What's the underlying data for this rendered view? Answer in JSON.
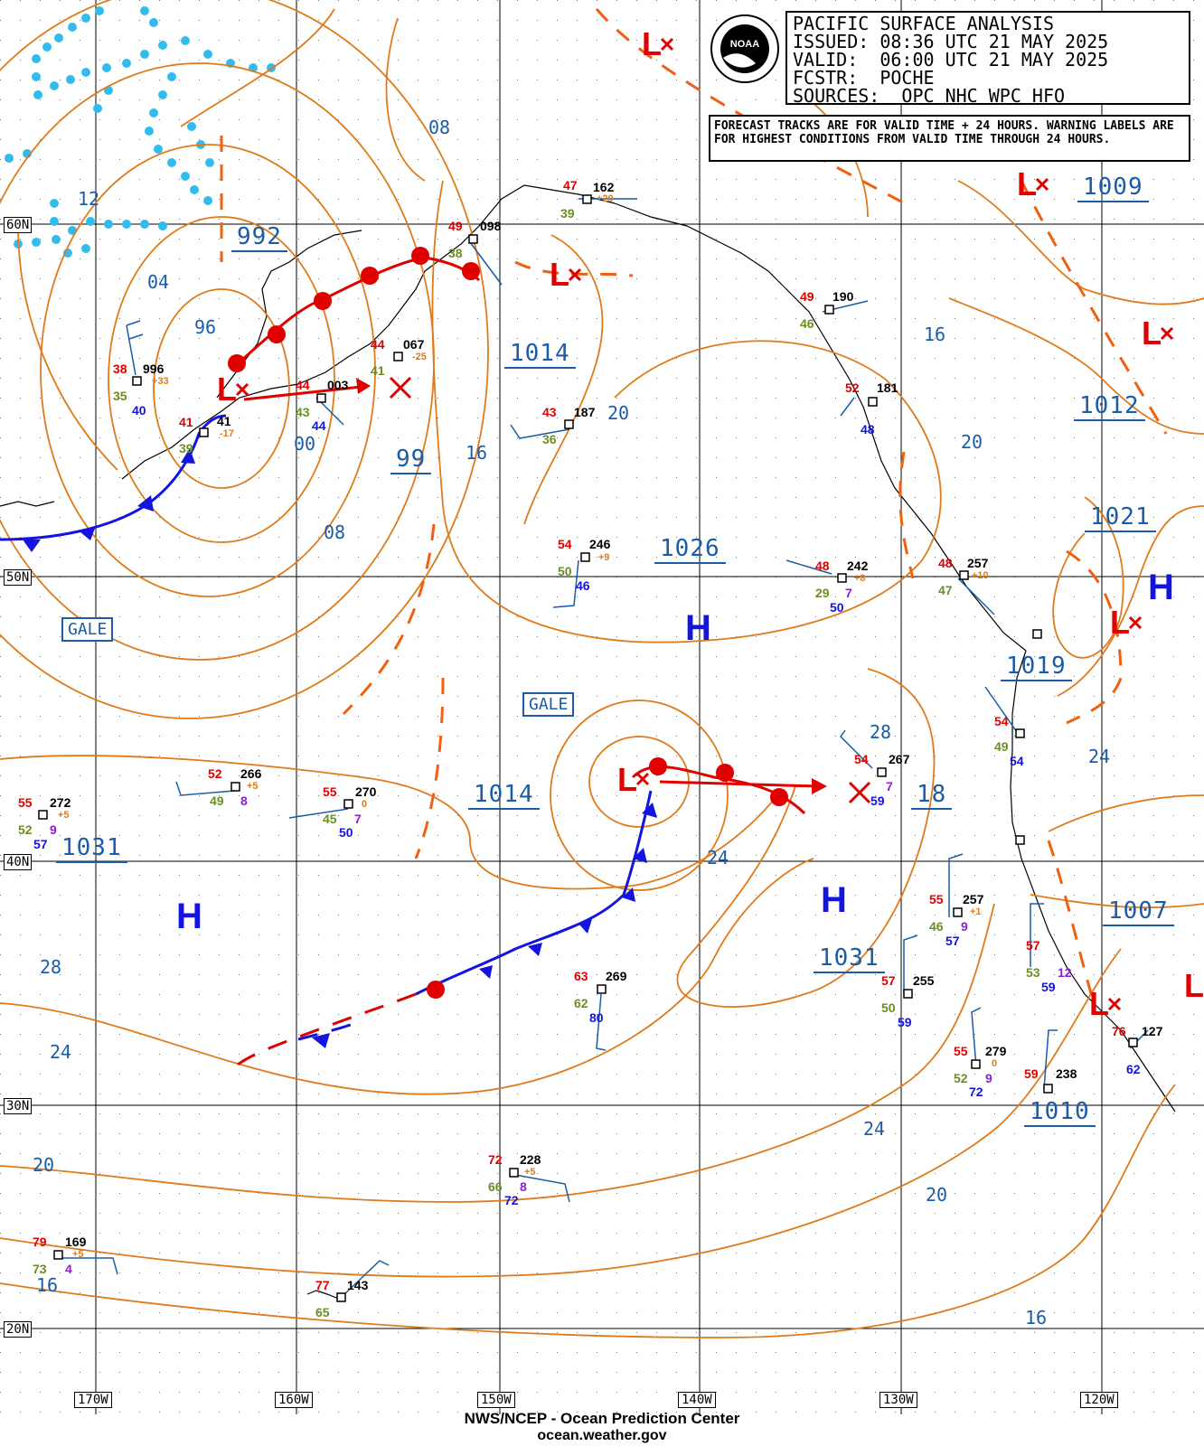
{
  "header": {
    "title": "PACIFIC SURFACE ANALYSIS",
    "issued": "ISSUED: 08:36 UTC 21 MAY 2025",
    "valid": "VALID:  06:00 UTC 21 MAY 2025",
    "forecaster": "FCSTR:  POCHE",
    "sources": "SOURCES:  OPC NHC WPC HFO"
  },
  "note": "FORECAST TRACKS ARE FOR VALID TIME + 24 HOURS. WARNING LABELS ARE FOR HIGHEST CONDITIONS FROM VALID TIME THROUGH 24 HOURS.",
  "logo_text": "NOAA",
  "footer": {
    "line1": "NWS/NCEP - Ocean Prediction Center",
    "line2": "ocean.weather.gov"
  },
  "latitudes": [
    "60N",
    "50N",
    "40N",
    "30N",
    "20N"
  ],
  "longitudes": [
    "170W",
    "160W",
    "150W",
    "140W",
    "130W",
    "120W"
  ],
  "pressure_centers": [
    "992",
    "99",
    "1014",
    "1014",
    "1026",
    "1031",
    "1031",
    "1019",
    "1021",
    "1012",
    "1009",
    "1007",
    "1010",
    "18"
  ],
  "isobar_labels": [
    "12",
    "04",
    "96",
    "00",
    "08",
    "08",
    "16",
    "20",
    "16",
    "20",
    "28",
    "24",
    "24",
    "28",
    "24",
    "20",
    "24",
    "20",
    "16",
    "16"
  ],
  "high_label": "H",
  "low_label": "L",
  "gale_label": "GALE",
  "colors": {
    "isobar": "#e07a1a",
    "label_blue": "#1a5ca8",
    "warm_front": "#e00000",
    "cold_front": "#1414e0",
    "ice_dots": "#33bbee",
    "grid": "#000000"
  },
  "observations": [
    {
      "temp": "38",
      "dew": "35",
      "pres": "996",
      "tend": "+33",
      "vis": "40"
    },
    {
      "temp": "41",
      "dew": "39",
      "pres": "41",
      "tend": "-17"
    },
    {
      "temp": "44",
      "dew": "43",
      "pres": "003",
      "vis": "44"
    },
    {
      "temp": "44",
      "dew": "41",
      "pres": "067",
      "tend": "-25"
    },
    {
      "temp": "49",
      "dew": "38",
      "pres": "098"
    },
    {
      "temp": "47",
      "dew": "39",
      "pres": "162",
      "tend": "+20"
    },
    {
      "temp": "43",
      "dew": "36",
      "pres": "187"
    },
    {
      "temp": "54",
      "dew": "50",
      "pres": "246",
      "tend": "+9",
      "vis": "46"
    },
    {
      "temp": "48",
      "dew": "29",
      "pres": "242",
      "tend": "+8",
      "vis": "50",
      "sst": "7"
    },
    {
      "temp": "48",
      "dew": "47",
      "pres": "257",
      "tend": "+10"
    },
    {
      "temp": "49",
      "dew": "46",
      "pres": "190"
    },
    {
      "temp": "52",
      "dew": "48",
      "pres": "181"
    },
    {
      "temp": "54",
      "dew": "49",
      "vis": "54"
    },
    {
      "temp": "52",
      "dew": "49",
      "pres": "266",
      "tend": "+5",
      "sst": "8"
    },
    {
      "temp": "55",
      "dew": "45",
      "pres": "270",
      "tend": "0",
      "vis": "50",
      "sst": "7"
    },
    {
      "temp": "55",
      "dew": "52",
      "pres": "272",
      "tend": "+5",
      "vis": "57",
      "sst": "9"
    },
    {
      "temp": "54",
      "pres": "267",
      "vis": "59",
      "sst": "7"
    },
    {
      "temp": "55",
      "dew": "46",
      "pres": "257",
      "tend": "+1",
      "vis": "57",
      "sst": "9"
    },
    {
      "temp": "57",
      "dew": "50",
      "pres": "255",
      "vis": "59"
    },
    {
      "temp": "57",
      "dew": "53",
      "vis": "59",
      "sst": "12"
    },
    {
      "temp": "63",
      "dew": "62",
      "pres": "269",
      "vis": "80"
    },
    {
      "temp": "55",
      "dew": "52",
      "pres": "279",
      "tend": "0",
      "vis": "72",
      "sst": "9"
    },
    {
      "temp": "59",
      "pres": "238"
    },
    {
      "temp": "76",
      "pres": "127",
      "vis": "62"
    },
    {
      "temp": "72",
      "dew": "66",
      "pres": "228",
      "tend": "+5",
      "vis": "72",
      "sst": "8"
    },
    {
      "temp": "79",
      "dew": "73",
      "pres": "169",
      "tend": "+5",
      "sst": "4"
    },
    {
      "temp": "77",
      "dew": "65",
      "pres": "143"
    }
  ]
}
